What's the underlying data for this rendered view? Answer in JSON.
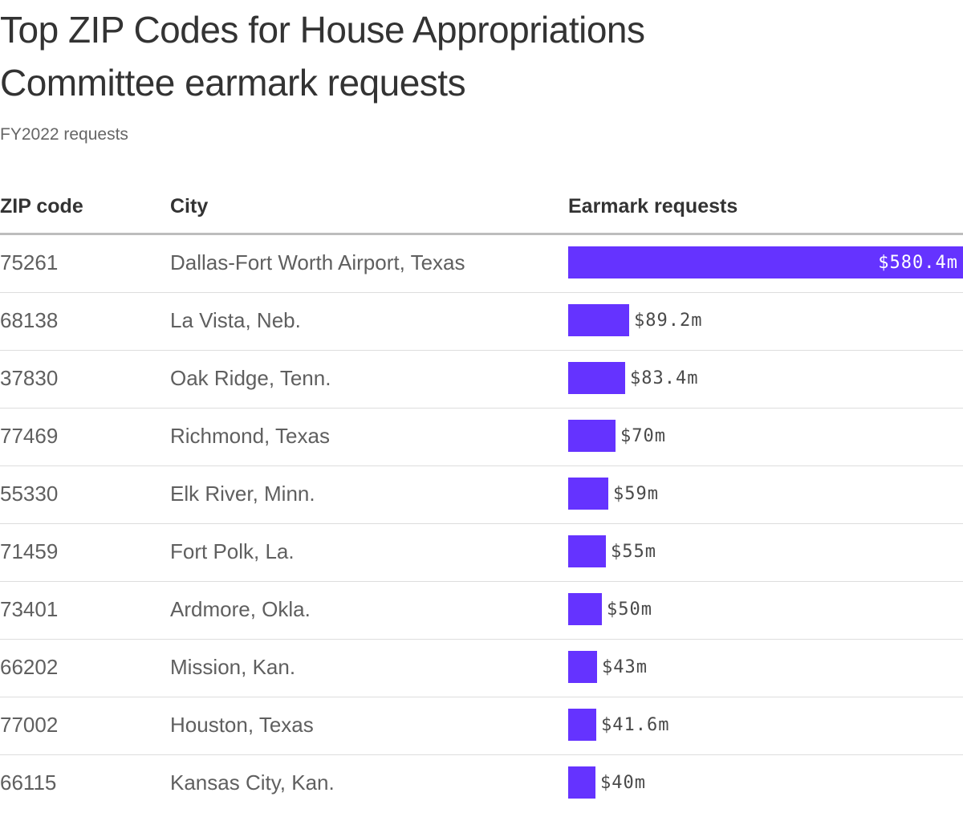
{
  "title": "Top ZIP Codes for House Appropriations Committee earmark requests",
  "subtitle": "FY2022 requests",
  "columns": {
    "zip": "ZIP code",
    "city": "City",
    "requests": "Earmark requests"
  },
  "colors": {
    "bar": "#6533ff",
    "header_rule": "#bdbdbd",
    "row_rule": "#dddddd"
  },
  "chart_data": {
    "type": "bar",
    "orientation": "horizontal",
    "title": "Top ZIP Codes for House Appropriations Committee earmark requests",
    "subtitle": "FY2022 requests",
    "unit": "millions of dollars",
    "categories": [
      "75261",
      "68138",
      "37830",
      "77469",
      "55330",
      "71459",
      "73401",
      "66202",
      "77002",
      "66115"
    ],
    "cities": [
      "Dallas-Fort Worth Airport, Texas",
      "La Vista, Neb.",
      "Oak Ridge, Tenn.",
      "Richmond, Texas",
      "Elk River, Minn.",
      "Fort Polk, La.",
      "Ardmore, Okla.",
      "Mission, Kan.",
      "Houston, Texas",
      "Kansas City, Kan."
    ],
    "values": [
      580.4,
      89.2,
      83.4,
      70,
      59,
      55,
      50,
      43,
      41.6,
      40
    ],
    "labels": [
      "$580.4m",
      "$89.2m",
      "$83.4m",
      "$70m",
      "$59m",
      "$55m",
      "$50m",
      "$43m",
      "$41.6m",
      "$40m"
    ],
    "xlim": [
      0,
      580.4
    ],
    "grid": false,
    "legend": "none"
  }
}
